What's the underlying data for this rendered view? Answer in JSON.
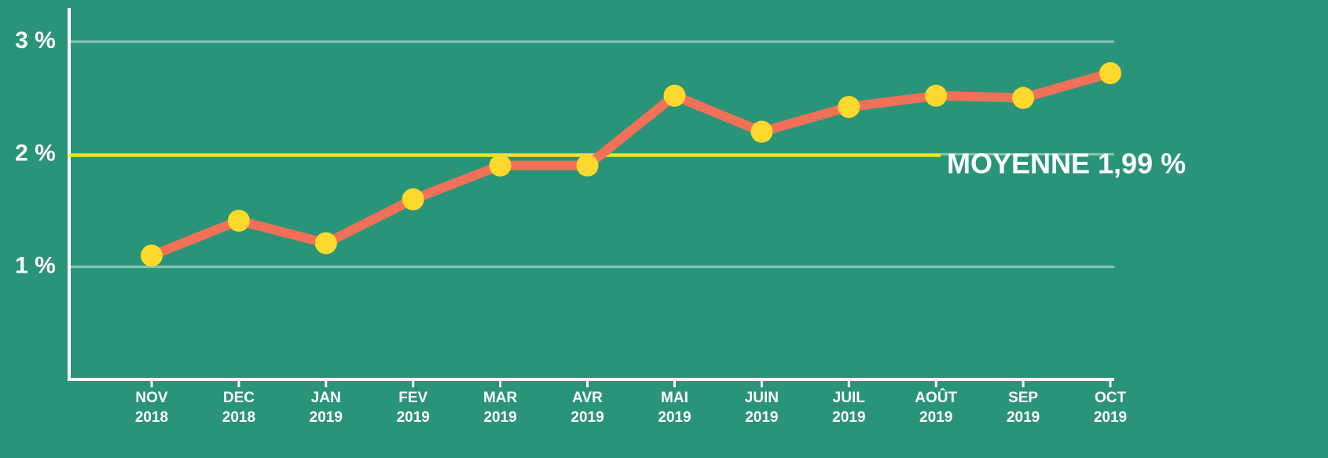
{
  "chart_data": {
    "type": "line",
    "categories": [
      [
        "NOV",
        "2018"
      ],
      [
        "DEC",
        "2018"
      ],
      [
        "JAN",
        "2019"
      ],
      [
        "FEV",
        "2019"
      ],
      [
        "MAR",
        "2019"
      ],
      [
        "AVR",
        "2019"
      ],
      [
        "MAI",
        "2019"
      ],
      [
        "JUIN",
        "2019"
      ],
      [
        "JUIL",
        "2019"
      ],
      [
        "AOÛT",
        "2019"
      ],
      [
        "SEP",
        "2019"
      ],
      [
        "OCT",
        "2019"
      ]
    ],
    "series": [
      {
        "color": "#f07058",
        "marker_color": "#fcd92a",
        "values": [
          1.1,
          1.41,
          1.21,
          1.6,
          1.9,
          1.9,
          2.52,
          2.2,
          2.42,
          2.52,
          2.5,
          2.72
        ]
      }
    ],
    "average": {
      "value": 1.99,
      "label": "MOYENNE 1,99 %",
      "color": "#f5e02a"
    },
    "ylim": [
      0,
      3.3
    ],
    "yticks": [
      {
        "value": 1,
        "label": "1 %"
      },
      {
        "value": 2,
        "label": "2 %"
      },
      {
        "value": 3,
        "label": "3 %"
      }
    ],
    "grid": true
  }
}
